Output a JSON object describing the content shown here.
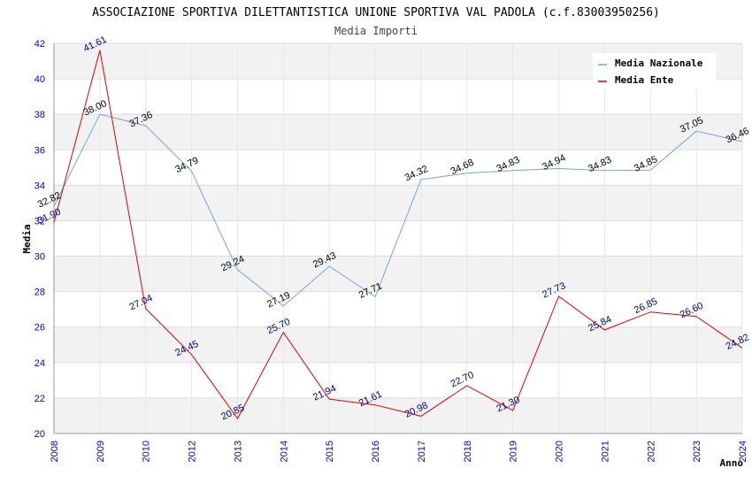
{
  "chart_data": {
    "type": "line",
    "title": "ASSOCIAZIONE SPORTIVA DILETTANTISTICA UNIONE SPORTIVA VAL PADOLA (c.f.83003950256)",
    "subtitle": "Media Importi",
    "xlabel": "Anno",
    "ylabel": "Media",
    "ylim": [
      20,
      42
    ],
    "yticks": [
      "20",
      "22",
      "24",
      "26",
      "28",
      "30",
      "32",
      "34",
      "36",
      "38",
      "40",
      "42"
    ],
    "categories": [
      "2008",
      "2009",
      "2010",
      "2012",
      "2013",
      "2014",
      "2015",
      "2016",
      "2017",
      "2018",
      "2019",
      "2020",
      "2021",
      "2022",
      "2023",
      "2024"
    ],
    "grid": true,
    "legend_position": "top-right",
    "series": [
      {
        "name": "Media Nazionale",
        "color": "#6fa8dc",
        "label_color": "#000000",
        "values": [
          32.82,
          38.0,
          37.36,
          34.79,
          29.24,
          27.19,
          29.43,
          27.71,
          34.32,
          34.68,
          34.83,
          34.94,
          34.83,
          34.85,
          37.05,
          36.46
        ],
        "labels": [
          "32.82",
          "38.00",
          "37.36",
          "34.79",
          "29.24",
          "27.19",
          "29.43",
          "27.71",
          "34.32",
          "34.68",
          "34.83",
          "34.94",
          "34.83",
          "34.85",
          "37.05",
          "36.46"
        ]
      },
      {
        "name": "Media Ente",
        "color": "#dd0000",
        "label_color": "#000080",
        "values": [
          31.9,
          41.61,
          27.04,
          24.45,
          20.85,
          25.7,
          21.94,
          21.61,
          20.98,
          22.7,
          21.3,
          27.73,
          25.84,
          26.85,
          26.6,
          24.82
        ],
        "labels": [
          "31.90",
          "41.61",
          "27.04",
          "24.45",
          "20.85",
          "25.70",
          "21.94",
          "21.61",
          "20.98",
          "22.70",
          "21.30",
          "27.73",
          "25.84",
          "26.85",
          "26.60",
          "24.82"
        ]
      }
    ]
  }
}
